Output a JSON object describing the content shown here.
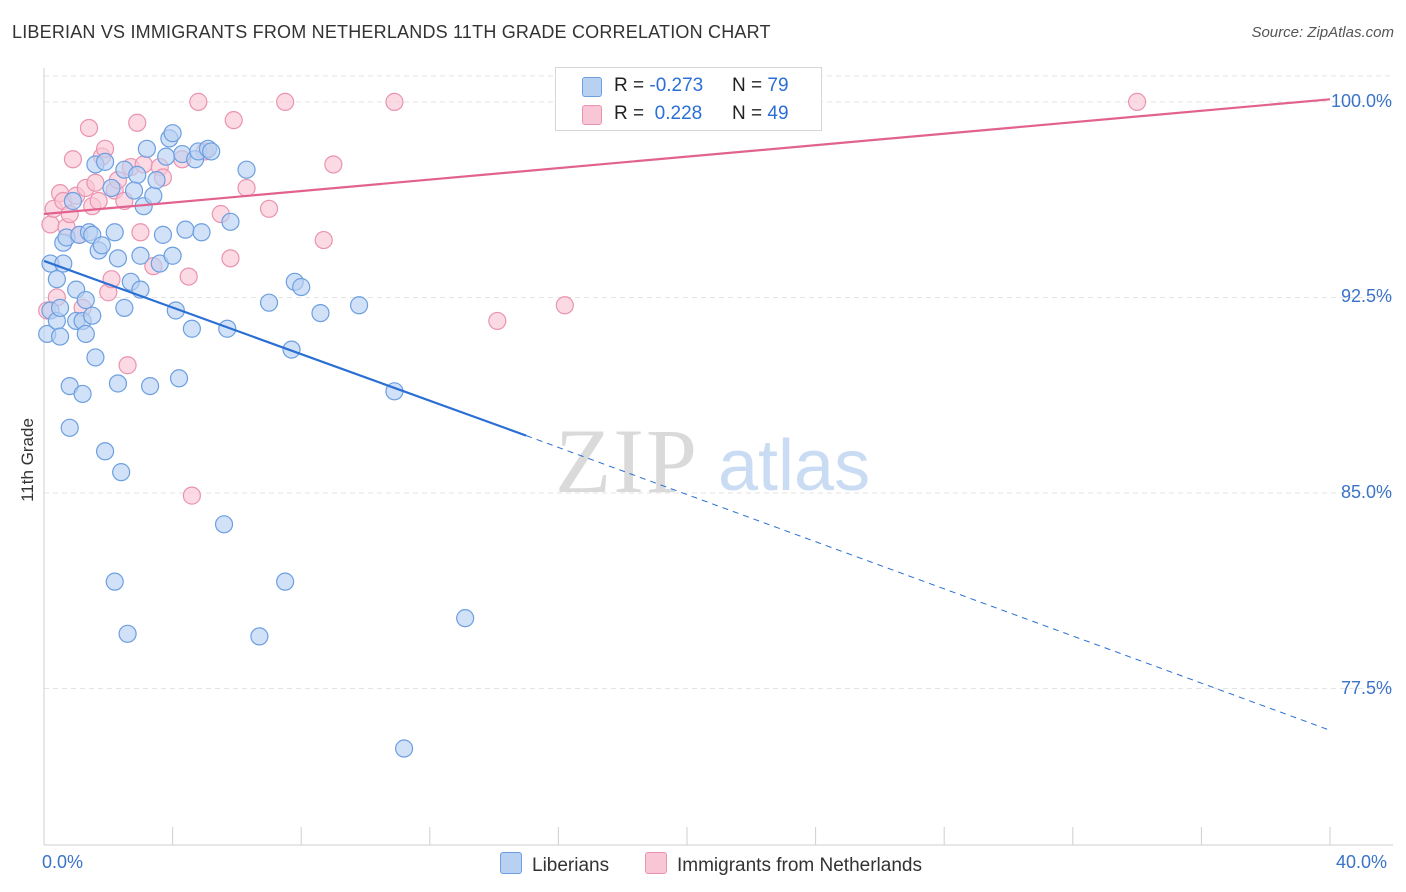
{
  "title": "LIBERIAN VS IMMIGRANTS FROM NETHERLANDS 11TH GRADE CORRELATION CHART",
  "source": "Source: ZipAtlas.com",
  "watermark": {
    "zip": "ZIP",
    "atlas": "atlas"
  },
  "legend": {
    "series1": {
      "r_label": "R = ",
      "r_value": "-0.273",
      "n_label": "N = ",
      "n_value": "79"
    },
    "series2": {
      "r_label": "R = ",
      "r_value": " 0.228",
      "n_label": "N = ",
      "n_value": "49"
    }
  },
  "bottom_legend": {
    "series1": "Liberians",
    "series2": "Immigrants from Netherlands"
  },
  "colors": {
    "blue_fill": "#b8d1f3",
    "blue_stroke": "#6d9fe0",
    "blue_line": "#2a6fd4",
    "pink_fill": "#f9c6d6",
    "pink_stroke": "#ea93b0",
    "pink_line": "#e2628f",
    "grid": "#e3e3e3",
    "tick_text": "#3b73c8"
  },
  "chart_data": {
    "type": "scatter",
    "title": "LIBERIAN VS IMMIGRANTS FROM NETHERLANDS 11TH GRADE CORRELATION CHART",
    "xlabel": "",
    "ylabel": "11th Grade",
    "xlim": [
      0,
      40
    ],
    "ylim": [
      71.5,
      101.3
    ],
    "x_tick_labels": [
      "0.0%",
      "40.0%"
    ],
    "y_ticks": [
      77.5,
      85.0,
      92.5,
      100.0
    ],
    "y_tick_labels": [
      "77.5%",
      "85.0%",
      "92.5%",
      "100.0%"
    ],
    "grid": "horizontal dashed",
    "legend_position": "top-center",
    "series": [
      {
        "name": "Liberians",
        "r": -0.273,
        "n": 79,
        "trend": {
          "x": [
            0,
            15.0
          ],
          "y": [
            93.9,
            87.2
          ],
          "dashed_extension_to": [
            40,
            75.9
          ]
        },
        "points": [
          [
            0.1,
            91.1
          ],
          [
            0.2,
            92.0
          ],
          [
            0.2,
            93.8
          ],
          [
            0.4,
            91.6
          ],
          [
            0.4,
            93.2
          ],
          [
            0.5,
            92.1
          ],
          [
            0.5,
            91.0
          ],
          [
            0.6,
            94.6
          ],
          [
            0.6,
            93.8
          ],
          [
            0.7,
            94.8
          ],
          [
            0.8,
            89.1
          ],
          [
            0.8,
            87.5
          ],
          [
            0.9,
            96.2
          ],
          [
            1.0,
            92.8
          ],
          [
            1.0,
            91.6
          ],
          [
            1.1,
            94.9
          ],
          [
            1.2,
            91.6
          ],
          [
            1.2,
            88.8
          ],
          [
            1.3,
            91.1
          ],
          [
            1.3,
            92.4
          ],
          [
            1.4,
            95.0
          ],
          [
            1.5,
            94.9
          ],
          [
            1.5,
            91.8
          ],
          [
            1.6,
            97.6
          ],
          [
            1.6,
            90.2
          ],
          [
            1.7,
            94.3
          ],
          [
            1.8,
            94.5
          ],
          [
            1.9,
            97.7
          ],
          [
            1.9,
            86.6
          ],
          [
            2.1,
            96.7
          ],
          [
            2.2,
            95.0
          ],
          [
            2.2,
            81.6
          ],
          [
            2.3,
            94.0
          ],
          [
            2.3,
            89.2
          ],
          [
            2.4,
            85.8
          ],
          [
            2.5,
            97.4
          ],
          [
            2.5,
            92.1
          ],
          [
            2.6,
            79.6
          ],
          [
            2.7,
            93.1
          ],
          [
            2.9,
            97.2
          ],
          [
            3.0,
            94.1
          ],
          [
            3.0,
            92.8
          ],
          [
            3.1,
            96.0
          ],
          [
            3.2,
            98.2
          ],
          [
            3.3,
            89.1
          ],
          [
            3.4,
            96.4
          ],
          [
            3.6,
            93.8
          ],
          [
            3.7,
            94.9
          ],
          [
            3.8,
            97.9
          ],
          [
            3.9,
            98.6
          ],
          [
            4.0,
            94.1
          ],
          [
            4.0,
            98.8
          ],
          [
            4.1,
            92.0
          ],
          [
            4.2,
            89.4
          ],
          [
            4.3,
            98.0
          ],
          [
            4.4,
            95.1
          ],
          [
            4.6,
            91.3
          ],
          [
            4.7,
            97.8
          ],
          [
            4.8,
            98.1
          ],
          [
            5.1,
            98.2
          ],
          [
            5.2,
            98.1
          ],
          [
            5.6,
            83.8
          ],
          [
            5.7,
            91.3
          ],
          [
            5.8,
            95.4
          ],
          [
            6.3,
            97.4
          ],
          [
            7.0,
            92.3
          ],
          [
            7.5,
            81.6
          ],
          [
            7.7,
            90.5
          ],
          [
            7.8,
            93.1
          ],
          [
            8.0,
            92.9
          ],
          [
            8.6,
            91.9
          ],
          [
            9.8,
            92.2
          ],
          [
            10.9,
            88.9
          ],
          [
            11.2,
            75.2
          ],
          [
            13.1,
            80.2
          ],
          [
            6.7,
            79.5
          ],
          [
            3.5,
            97.0
          ],
          [
            4.9,
            95.0
          ],
          [
            2.8,
            96.6
          ]
        ]
      },
      {
        "name": "Immigrants from Netherlands",
        "r": 0.228,
        "n": 49,
        "trend": {
          "x": [
            0,
            40
          ],
          "y": [
            95.7,
            100.1
          ]
        },
        "points": [
          [
            0.1,
            92.0
          ],
          [
            0.2,
            95.3
          ],
          [
            0.3,
            95.9
          ],
          [
            0.4,
            92.5
          ],
          [
            0.5,
            96.5
          ],
          [
            0.6,
            96.2
          ],
          [
            0.7,
            95.2
          ],
          [
            0.8,
            95.7
          ],
          [
            0.9,
            97.8
          ],
          [
            1.0,
            96.4
          ],
          [
            1.1,
            94.9
          ],
          [
            1.2,
            92.1
          ],
          [
            1.3,
            96.7
          ],
          [
            1.4,
            99.0
          ],
          [
            1.5,
            96.0
          ],
          [
            1.6,
            96.9
          ],
          [
            1.7,
            96.2
          ],
          [
            1.8,
            97.9
          ],
          [
            1.9,
            98.2
          ],
          [
            2.0,
            92.7
          ],
          [
            2.1,
            93.2
          ],
          [
            2.2,
            96.6
          ],
          [
            2.3,
            97.0
          ],
          [
            2.5,
            96.2
          ],
          [
            2.6,
            89.9
          ],
          [
            2.7,
            97.5
          ],
          [
            2.9,
            99.2
          ],
          [
            3.0,
            95.0
          ],
          [
            3.1,
            97.6
          ],
          [
            3.4,
            93.7
          ],
          [
            3.6,
            97.5
          ],
          [
            3.7,
            97.1
          ],
          [
            4.3,
            97.8
          ],
          [
            4.5,
            93.3
          ],
          [
            4.6,
            84.9
          ],
          [
            4.8,
            100.0
          ],
          [
            5.0,
            98.1
          ],
          [
            5.5,
            95.7
          ],
          [
            5.8,
            94.0
          ],
          [
            5.9,
            99.3
          ],
          [
            6.3,
            96.7
          ],
          [
            7.0,
            95.9
          ],
          [
            7.5,
            100.0
          ],
          [
            8.7,
            94.7
          ],
          [
            9.0,
            97.6
          ],
          [
            10.9,
            100.0
          ],
          [
            14.1,
            91.6
          ],
          [
            16.2,
            92.2
          ],
          [
            34.0,
            100.0
          ]
        ]
      }
    ]
  }
}
